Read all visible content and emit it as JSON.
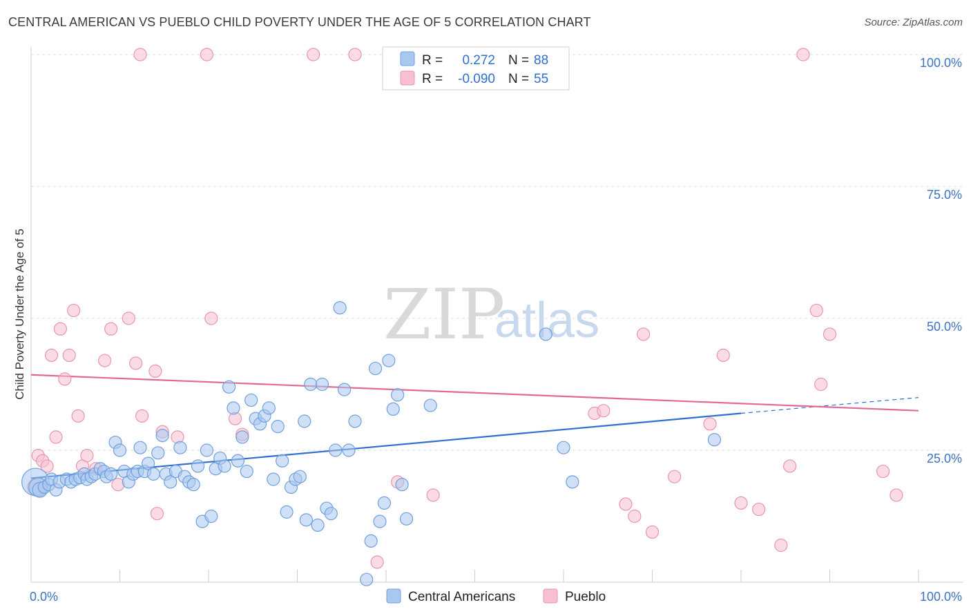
{
  "title": "CENTRAL AMERICAN VS PUEBLO CHILD POVERTY UNDER THE AGE OF 5 CORRELATION CHART",
  "source": "Source: ZipAtlas.com",
  "watermark": {
    "zip": "ZIP",
    "atlas": "atlas"
  },
  "colors": {
    "blue_fill": "#a9c8f0",
    "blue_stroke": "#6f9fdc",
    "blue_line": "#2e6fd0",
    "pink_fill": "#f7bfd0",
    "pink_stroke": "#ea93b0",
    "pink_line": "#e06a94",
    "grid": "#dddddd",
    "axis_label": "#3b72c4"
  },
  "legend": {
    "rows": [
      {
        "r_label": "R =",
        "r_value": "0.272",
        "n_label": "N =",
        "n_value": "88",
        "series": "blue"
      },
      {
        "r_label": "R =",
        "r_value": "-0.090",
        "n_label": "N =",
        "n_value": "55",
        "series": "pink"
      }
    ]
  },
  "bottom_legend": {
    "items": [
      {
        "label": "Central Americans",
        "series": "blue"
      },
      {
        "label": "Pueblo",
        "series": "pink"
      }
    ]
  },
  "chart_data": {
    "type": "scatter",
    "title": "CENTRAL AMERICAN VS PUEBLO CHILD POVERTY UNDER THE AGE OF 5 CORRELATION CHART",
    "xlabel": "",
    "ylabel": "Child Poverty Under the Age of 5",
    "xlim": [
      0,
      100
    ],
    "ylim": [
      0,
      100
    ],
    "x_tick_labels": [
      "0.0%",
      "100.0%"
    ],
    "y_ticks": [
      25,
      50,
      75,
      100
    ],
    "y_tick_labels": [
      "25.0%",
      "50.0%",
      "75.0%",
      "100.0%"
    ],
    "grid": true,
    "series": [
      {
        "name": "Central Americans",
        "color": "blue",
        "r": 0.272,
        "n": 88,
        "trend": {
          "x": [
            0,
            80
          ],
          "y": [
            19.7,
            32.0
          ],
          "dashed_to": [
            100,
            35.0
          ]
        },
        "points": [
          [
            0.5,
            19.0,
            2.2
          ],
          [
            0.8,
            18.0,
            1.5
          ],
          [
            1.0,
            17.5,
            1.2
          ],
          [
            1.5,
            18.0,
            1.0
          ],
          [
            2.0,
            18.5,
            1.0
          ],
          [
            2.3,
            19.5,
            1.0
          ],
          [
            2.8,
            17.5,
            1.0
          ],
          [
            3.2,
            19.0,
            1.0
          ],
          [
            4.0,
            19.5,
            1.0
          ],
          [
            4.5,
            19.0,
            1.0
          ],
          [
            5.0,
            19.5,
            1.0
          ],
          [
            5.5,
            19.8,
            1.0
          ],
          [
            6.0,
            20.5,
            1.0
          ],
          [
            6.3,
            19.5,
            1.0
          ],
          [
            6.8,
            20.0,
            1.0
          ],
          [
            7.2,
            20.5,
            1.0
          ],
          [
            7.8,
            21.5,
            1.0
          ],
          [
            8.2,
            21.0,
            1.0
          ],
          [
            8.5,
            20.0,
            1.0
          ],
          [
            9.0,
            20.5,
            1.0
          ],
          [
            9.5,
            26.5,
            1.0
          ],
          [
            10.0,
            25.0,
            1.0
          ],
          [
            10.5,
            21.0,
            1.0
          ],
          [
            11.0,
            19.0,
            1.0
          ],
          [
            11.5,
            20.5,
            1.0
          ],
          [
            12.0,
            21.0,
            1.0
          ],
          [
            12.3,
            25.5,
            1.0
          ],
          [
            12.8,
            21.0,
            1.0
          ],
          [
            13.2,
            22.5,
            1.0
          ],
          [
            13.8,
            20.5,
            1.0
          ],
          [
            14.3,
            24.5,
            1.0
          ],
          [
            14.8,
            27.8,
            1.0
          ],
          [
            15.2,
            20.5,
            1.0
          ],
          [
            15.7,
            19.0,
            1.0
          ],
          [
            16.3,
            21.0,
            1.0
          ],
          [
            16.8,
            25.5,
            1.0
          ],
          [
            17.3,
            20.0,
            1.0
          ],
          [
            17.8,
            19.0,
            1.0
          ],
          [
            18.3,
            18.5,
            1.0
          ],
          [
            18.8,
            22.0,
            1.0
          ],
          [
            19.3,
            11.5,
            1.0
          ],
          [
            19.8,
            25.0,
            1.0
          ],
          [
            20.3,
            12.5,
            1.0
          ],
          [
            20.8,
            21.5,
            1.0
          ],
          [
            21.3,
            23.5,
            1.0
          ],
          [
            21.8,
            22.0,
            1.0
          ],
          [
            22.3,
            37.0,
            1.0
          ],
          [
            22.8,
            33.0,
            1.0
          ],
          [
            23.3,
            23.0,
            1.0
          ],
          [
            23.8,
            27.5,
            1.0
          ],
          [
            24.3,
            21.0,
            1.0
          ],
          [
            24.8,
            34.5,
            1.0
          ],
          [
            25.3,
            31.0,
            1.0
          ],
          [
            25.8,
            30.0,
            1.0
          ],
          [
            26.3,
            31.5,
            1.0
          ],
          [
            26.8,
            33.0,
            1.0
          ],
          [
            27.3,
            19.5,
            1.0
          ],
          [
            27.8,
            29.5,
            1.0
          ],
          [
            28.3,
            23.0,
            1.0
          ],
          [
            28.8,
            13.3,
            1.0
          ],
          [
            29.3,
            18.0,
            1.0
          ],
          [
            29.8,
            19.5,
            1.0
          ],
          [
            30.3,
            20.0,
            1.0
          ],
          [
            30.8,
            30.5,
            1.0
          ],
          [
            31.0,
            11.8,
            1.0
          ],
          [
            31.5,
            37.5,
            1.0
          ],
          [
            32.3,
            10.8,
            1.0
          ],
          [
            32.8,
            37.5,
            1.0
          ],
          [
            33.3,
            14.0,
            1.0
          ],
          [
            33.8,
            13.0,
            1.0
          ],
          [
            34.3,
            25.0,
            1.0
          ],
          [
            34.8,
            52.0,
            1.0
          ],
          [
            35.3,
            36.5,
            1.0
          ],
          [
            35.8,
            25.0,
            1.0
          ],
          [
            36.5,
            30.5,
            1.0
          ],
          [
            37.8,
            0.5,
            1.0
          ],
          [
            38.3,
            7.8,
            1.0
          ],
          [
            38.8,
            40.5,
            1.0
          ],
          [
            39.3,
            11.5,
            1.0
          ],
          [
            39.8,
            15.0,
            1.0
          ],
          [
            40.3,
            42.0,
            1.0
          ],
          [
            40.8,
            32.8,
            1.0
          ],
          [
            41.3,
            35.5,
            1.0
          ],
          [
            41.8,
            18.5,
            1.0
          ],
          [
            42.3,
            12.0,
            1.0
          ],
          [
            45.0,
            33.5,
            1.0
          ],
          [
            58.0,
            47.0,
            1.0
          ],
          [
            60.0,
            25.5,
            1.0
          ],
          [
            61.0,
            19.0,
            1.0
          ],
          [
            77.0,
            27.0,
            1.0
          ]
        ]
      },
      {
        "name": "Pueblo",
        "color": "pink",
        "r": -0.09,
        "n": 55,
        "trend": {
          "x": [
            0,
            100
          ],
          "y": [
            39.3,
            32.5
          ]
        },
        "points": [
          [
            0.5,
            18.0,
            1.3
          ],
          [
            0.8,
            24.0,
            1.0
          ],
          [
            1.3,
            23.0,
            1.0
          ],
          [
            1.8,
            22.0,
            1.0
          ],
          [
            2.3,
            43.0,
            1.0
          ],
          [
            2.8,
            27.5,
            1.0
          ],
          [
            3.3,
            48.0,
            1.0
          ],
          [
            3.8,
            38.5,
            1.0
          ],
          [
            4.3,
            43.0,
            1.0
          ],
          [
            4.8,
            51.5,
            1.0
          ],
          [
            5.3,
            31.5,
            1.0
          ],
          [
            5.8,
            22.0,
            1.0
          ],
          [
            6.3,
            24.0,
            1.0
          ],
          [
            7.3,
            21.5,
            1.0
          ],
          [
            8.3,
            42.0,
            1.0
          ],
          [
            9.0,
            48.0,
            1.0
          ],
          [
            9.8,
            18.5,
            1.0
          ],
          [
            11.0,
            50.0,
            1.0
          ],
          [
            11.8,
            41.5,
            1.0
          ],
          [
            12.3,
            100.0,
            1.0
          ],
          [
            12.5,
            31.5,
            1.0
          ],
          [
            14.0,
            40.0,
            1.0
          ],
          [
            14.2,
            13.0,
            1.0
          ],
          [
            14.8,
            28.5,
            1.0
          ],
          [
            16.5,
            27.5,
            1.0
          ],
          [
            19.8,
            100.0,
            1.0
          ],
          [
            20.3,
            50.0,
            1.0
          ],
          [
            23.0,
            31.0,
            1.0
          ],
          [
            23.8,
            28.0,
            1.0
          ],
          [
            31.8,
            100.0,
            1.0
          ],
          [
            36.5,
            100.0,
            1.0
          ],
          [
            39.0,
            3.8,
            1.0
          ],
          [
            41.3,
            19.0,
            1.0
          ],
          [
            45.3,
            16.5,
            1.0
          ],
          [
            63.5,
            32.0,
            1.0
          ],
          [
            64.5,
            32.5,
            1.0
          ],
          [
            67.0,
            14.8,
            1.0
          ],
          [
            68.0,
            12.5,
            1.0
          ],
          [
            69.0,
            47.0,
            1.0
          ],
          [
            70.0,
            9.5,
            1.0
          ],
          [
            72.5,
            20.0,
            1.0
          ],
          [
            76.5,
            30.0,
            1.0
          ],
          [
            78.0,
            43.0,
            1.0
          ],
          [
            80.0,
            15.0,
            1.0
          ],
          [
            82.0,
            13.8,
            1.0
          ],
          [
            84.5,
            7.0,
            1.0
          ],
          [
            85.5,
            22.0,
            1.0
          ],
          [
            87.0,
            100.0,
            1.0
          ],
          [
            88.5,
            51.5,
            1.0
          ],
          [
            89.0,
            37.5,
            1.0
          ],
          [
            90.0,
            47.0,
            1.0
          ],
          [
            96.0,
            21.0,
            1.0
          ],
          [
            97.5,
            16.5,
            1.0
          ]
        ]
      }
    ]
  }
}
